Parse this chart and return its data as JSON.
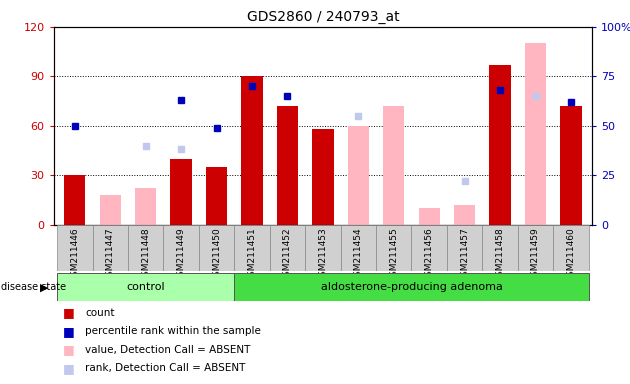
{
  "title": "GDS2860 / 240793_at",
  "samples": [
    "GSM211446",
    "GSM211447",
    "GSM211448",
    "GSM211449",
    "GSM211450",
    "GSM211451",
    "GSM211452",
    "GSM211453",
    "GSM211454",
    "GSM211455",
    "GSM211456",
    "GSM211457",
    "GSM211458",
    "GSM211459",
    "GSM211460"
  ],
  "count": [
    30,
    null,
    null,
    40,
    35,
    90,
    72,
    58,
    null,
    null,
    null,
    null,
    97,
    null,
    72
  ],
  "percentile_rank": [
    50,
    null,
    null,
    63,
    49,
    70,
    65,
    null,
    null,
    null,
    null,
    null,
    68,
    null,
    62
  ],
  "value_absent": [
    null,
    18,
    22,
    null,
    null,
    null,
    null,
    null,
    60,
    72,
    10,
    12,
    null,
    110,
    null
  ],
  "rank_absent": [
    null,
    null,
    40,
    38,
    null,
    null,
    null,
    null,
    55,
    null,
    null,
    22,
    null,
    65,
    null
  ],
  "left_ylim": [
    0,
    120
  ],
  "right_ylim": [
    0,
    100
  ],
  "left_yticks": [
    0,
    30,
    60,
    90,
    120
  ],
  "right_yticks": [
    0,
    25,
    50,
    75,
    100
  ],
  "left_ytick_labels": [
    "0",
    "30",
    "60",
    "90",
    "120"
  ],
  "right_ytick_labels": [
    "0",
    "25",
    "50",
    "75",
    "100%"
  ],
  "n_control": 5,
  "count_color": "#cc0000",
  "percentile_color": "#0000bb",
  "value_absent_color": "#ffb6c1",
  "rank_absent_color": "#c0c8ee",
  "bg_color": "#d0d0d0",
  "control_bg": "#aaffaa",
  "adenoma_bg": "#44dd44",
  "left_label_color": "#cc0000",
  "right_label_color": "#0000bb",
  "grid_yticks": [
    30,
    60,
    90
  ]
}
